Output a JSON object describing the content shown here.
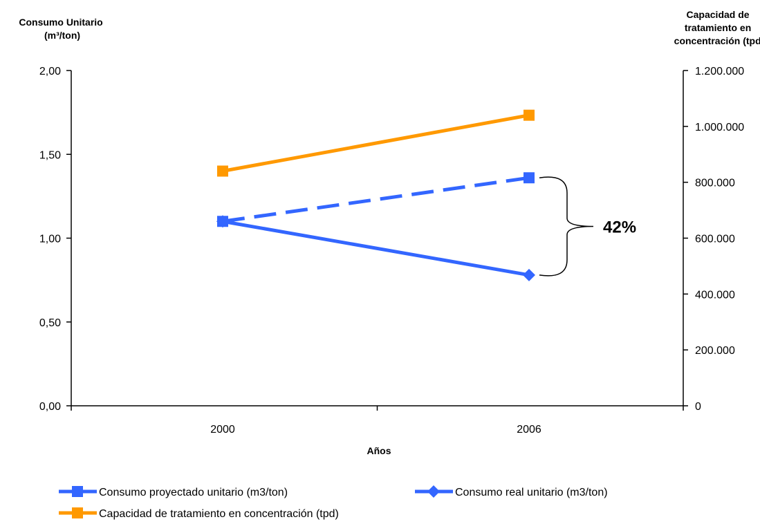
{
  "chart_data": {
    "type": "line",
    "x": [
      "2000",
      "2006"
    ],
    "xlabel": "Años",
    "ylabel_left": [
      "Consumo Unitario",
      "(m³/ton)"
    ],
    "ylabel_right": [
      "Capacidad de",
      "tratamiento en",
      "concentración (tpd)"
    ],
    "ylim_left": [
      0,
      2
    ],
    "yticks_left": [
      "0,00",
      "0,50",
      "1,00",
      "1,50",
      "2,00"
    ],
    "ylim_right": [
      0,
      1200000
    ],
    "yticks_right": [
      "0",
      "200.000",
      "400.000",
      "600.000",
      "800.000",
      "1.000.000",
      "1.200.000"
    ],
    "grid": false,
    "legend_position": "bottom",
    "series": [
      {
        "name": "Consumo proyectado unitario (m3/ton)",
        "axis": "left",
        "values": [
          1.1,
          1.36
        ],
        "color": "#3366FF",
        "marker": "square",
        "dash": true
      },
      {
        "name": "Consumo real unitario (m3/ton)",
        "axis": "left",
        "values": [
          1.1,
          0.78
        ],
        "color": "#3366FF",
        "marker": "diamond",
        "dash": false
      },
      {
        "name": "Capacidad de tratamiento en concentración (tpd)",
        "axis": "right",
        "values": [
          840000,
          1040000
        ],
        "color": "#FF9900",
        "marker": "square",
        "dash": false
      }
    ],
    "annotations": [
      {
        "text": "42%"
      }
    ]
  }
}
